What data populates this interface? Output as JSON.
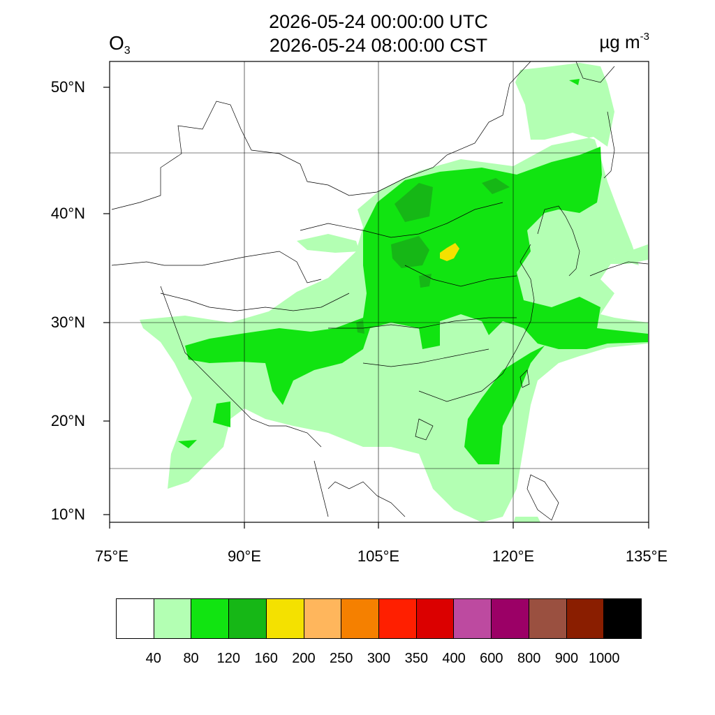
{
  "title": {
    "utc": "2026-05-24 00:00:00 UTC",
    "cst": "2026-05-24 08:00:00 CST"
  },
  "variable": {
    "base": "O",
    "sub": "3"
  },
  "unit": {
    "base": "µg m",
    "sup": "-3"
  },
  "map": {
    "lon_range": [
      75,
      135
    ],
    "lat_range": [
      9,
      52
    ],
    "lat_ticks": [
      "50°N",
      "40°N",
      "30°N",
      "20°N",
      "10°N"
    ],
    "lon_ticks": [
      "75°E",
      "90°E",
      "105°E",
      "120°E",
      "135°E"
    ],
    "gridlines": true
  },
  "colorbar": {
    "colors": [
      "#ffffff",
      "#b3ffb3",
      "#11e411",
      "#16b716",
      "#f4e100",
      "#ffb65c",
      "#f58000",
      "#ff1f00",
      "#db0000",
      "#bd4aa0",
      "#9b0066",
      "#9a5040",
      "#8a1e00",
      "#000000"
    ],
    "labels": [
      "40",
      "80",
      "120",
      "160",
      "200",
      "250",
      "300",
      "350",
      "400",
      "600",
      "800",
      "900",
      "1000"
    ]
  },
  "field_colors": {
    "level1": "#b3ffb3",
    "level2": "#11e411",
    "level3": "#16b716",
    "level4": "#f4e100"
  }
}
